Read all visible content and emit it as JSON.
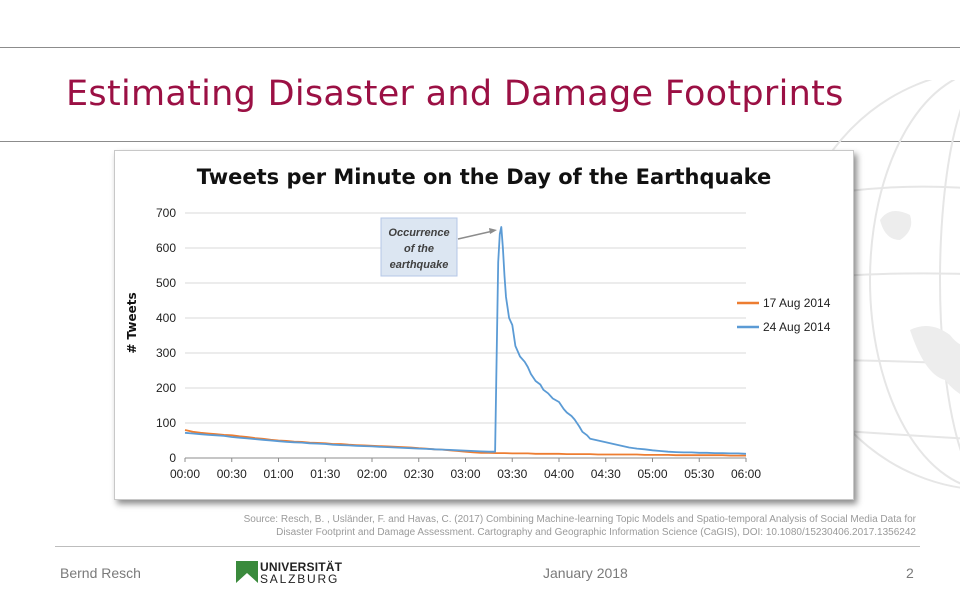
{
  "slide": {
    "title": "Estimating Disaster and Damage Footprints",
    "source_line1": "Source: Resch, B. , Usländer, F. and Havas, C. (2017) Combining Machine-learning Topic Models and Spatio-temporal Analysis of Social Media Data for",
    "source_line2": "Disaster Footprint and Damage Assessment. Cartography and Geographic Information Science (CaGIS), DOI: 10.1080/15230406.2017.1356242"
  },
  "footer": {
    "author": "Bernd Resch",
    "date": "January 2018",
    "page": "2",
    "logo_line1": "UNIVERSITÄT",
    "logo_line2": "SALZBURG"
  },
  "colors": {
    "title": "#9b1044",
    "series_17aug": "#ed7d31",
    "series_24aug": "#5b9bd5",
    "logo_green": "#3a8a3c"
  },
  "chart_data": {
    "type": "line",
    "title": "Tweets per Minute on the Day of the Earthquake",
    "xlabel": "",
    "ylabel": "# Tweets",
    "xlim": [
      "00:00",
      "06:00"
    ],
    "ylim": [
      0,
      700
    ],
    "x_ticks": [
      "00:00",
      "00:30",
      "01:00",
      "01:30",
      "02:00",
      "02:30",
      "03:00",
      "03:30",
      "04:00",
      "04:30",
      "05:00",
      "05:30",
      "06:00"
    ],
    "y_ticks": [
      0,
      100,
      200,
      300,
      400,
      500,
      600,
      700
    ],
    "grid": "horizontal",
    "legend_position": "right",
    "annotation": {
      "lines": [
        "Occurrence",
        "of the",
        "earthquake"
      ],
      "points_to": {
        "x": "03:20",
        "y": 660
      }
    },
    "x_unit": "minutes after 00:00",
    "series": [
      {
        "name": "17 Aug 2014",
        "color": "#ed7d31",
        "x": [
          0,
          5,
          10,
          15,
          20,
          25,
          30,
          35,
          40,
          45,
          50,
          55,
          60,
          65,
          70,
          75,
          80,
          85,
          90,
          95,
          100,
          105,
          110,
          115,
          120,
          125,
          130,
          135,
          140,
          145,
          150,
          155,
          160,
          165,
          170,
          175,
          180,
          185,
          190,
          195,
          200,
          205,
          210,
          215,
          220,
          225,
          230,
          235,
          240,
          245,
          250,
          255,
          260,
          265,
          270,
          275,
          280,
          285,
          290,
          295,
          300,
          305,
          310,
          315,
          320,
          325,
          330,
          335,
          340,
          345,
          350,
          355,
          360
        ],
        "values": [
          80,
          75,
          72,
          70,
          68,
          66,
          65,
          62,
          60,
          57,
          55,
          52,
          50,
          49,
          47,
          46,
          44,
          43,
          42,
          40,
          40,
          38,
          37,
          36,
          35,
          34,
          33,
          32,
          31,
          30,
          28,
          27,
          25,
          24,
          22,
          20,
          18,
          16,
          15,
          15,
          14,
          14,
          13,
          13,
          13,
          12,
          12,
          12,
          12,
          11,
          11,
          11,
          11,
          10,
          10,
          10,
          10,
          10,
          10,
          9,
          9,
          9,
          9,
          8,
          8,
          8,
          8,
          8,
          8,
          8,
          7,
          7,
          7
        ]
      },
      {
        "name": "24 Aug 2014",
        "color": "#5b9bd5",
        "x": [
          0,
          5,
          10,
          15,
          20,
          25,
          30,
          35,
          40,
          45,
          50,
          55,
          60,
          65,
          70,
          75,
          80,
          85,
          90,
          95,
          100,
          105,
          110,
          115,
          120,
          125,
          130,
          135,
          140,
          145,
          150,
          155,
          160,
          165,
          170,
          175,
          180,
          185,
          190,
          195,
          199,
          200,
          201,
          202,
          203,
          204,
          205,
          206,
          208,
          210,
          212,
          215,
          218,
          220,
          222,
          225,
          228,
          230,
          233,
          236,
          240,
          243,
          245,
          248,
          250,
          253,
          255,
          258,
          260,
          265,
          270,
          275,
          280,
          285,
          290,
          295,
          300,
          305,
          310,
          315,
          320,
          325,
          330,
          335,
          340,
          345,
          350,
          355,
          360
        ],
        "values": [
          72,
          70,
          68,
          66,
          65,
          63,
          60,
          58,
          56,
          54,
          52,
          50,
          48,
          46,
          45,
          44,
          42,
          41,
          40,
          38,
          37,
          36,
          35,
          34,
          33,
          32,
          31,
          30,
          29,
          28,
          27,
          26,
          25,
          24,
          23,
          22,
          21,
          20,
          19,
          18,
          18,
          300,
          560,
          640,
          660,
          600,
          520,
          460,
          400,
          380,
          320,
          290,
          275,
          260,
          240,
          220,
          210,
          195,
          185,
          170,
          160,
          140,
          130,
          120,
          110,
          90,
          75,
          65,
          55,
          50,
          45,
          40,
          35,
          30,
          27,
          25,
          22,
          20,
          18,
          17,
          16,
          16,
          15,
          15,
          14,
          14,
          13,
          13,
          12
        ]
      }
    ]
  }
}
